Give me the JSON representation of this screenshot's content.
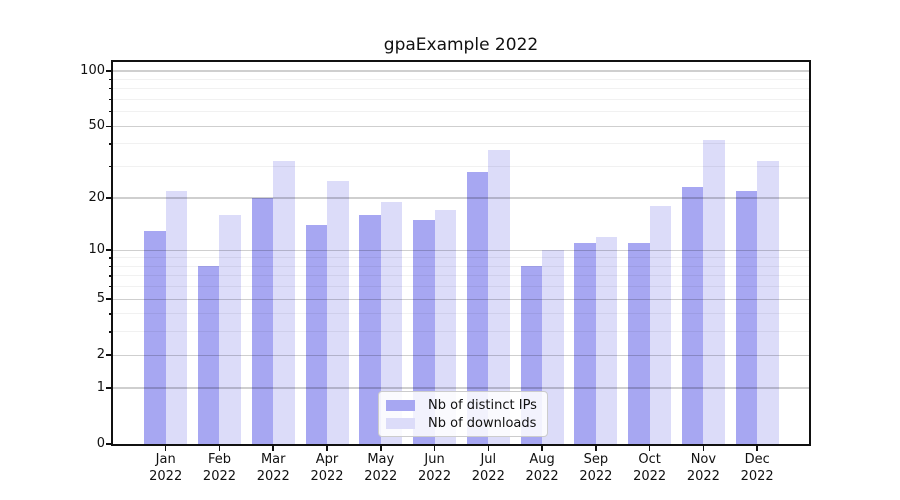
{
  "title": "gpaExample 2022",
  "chart_data": {
    "type": "bar",
    "title": "gpaExample 2022",
    "categories": [
      "Jan",
      "Feb",
      "Mar",
      "Apr",
      "May",
      "Jun",
      "Jul",
      "Aug",
      "Sep",
      "Oct",
      "Nov",
      "Dec"
    ],
    "category_year": "2022",
    "series": [
      {
        "name": "Nb of distinct IPs",
        "color": "#a7a7f2",
        "values": [
          13,
          8,
          20,
          14,
          16,
          15,
          28,
          8,
          11,
          11,
          23,
          22
        ]
      },
      {
        "name": "Nb of downloads",
        "color": "#dcdcf9",
        "values": [
          22,
          16,
          32,
          25,
          19,
          17,
          37,
          10,
          12,
          18,
          42,
          32
        ]
      }
    ],
    "xlabel": "",
    "ylabel": "",
    "yscale": "log1p",
    "ylim": [
      0,
      112
    ],
    "y_major_ticks": [
      0,
      1,
      2,
      5,
      10,
      20,
      50,
      100
    ],
    "y_minor_gridlines": [
      3,
      4,
      6,
      7,
      8,
      9,
      30,
      40,
      60,
      70,
      80,
      90
    ],
    "grid": "on",
    "legend_position": "lower center"
  }
}
